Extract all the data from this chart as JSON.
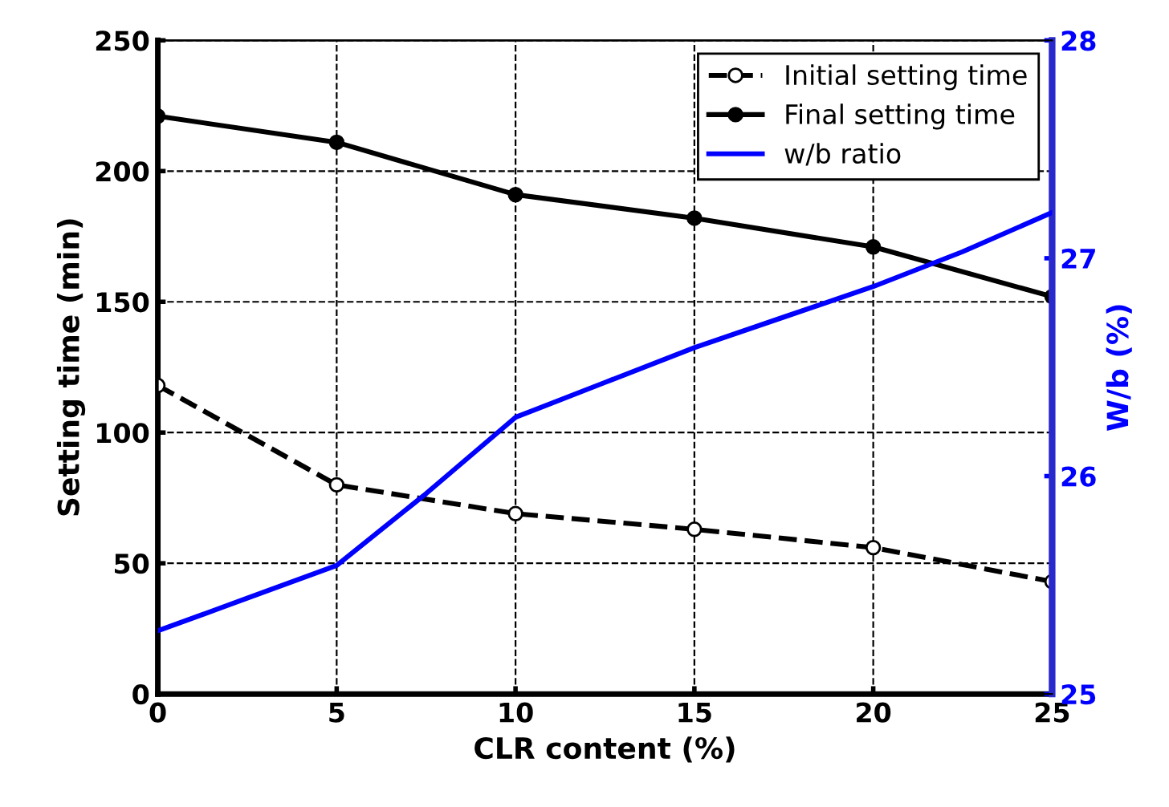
{
  "chart_data": {
    "type": "line",
    "xlabel": "CLR content (%)",
    "ylabel": "Setting time (min)",
    "y2label": "W/b (%)",
    "xlim": [
      0,
      25
    ],
    "xticks": [
      0,
      5,
      10,
      15,
      20,
      25
    ],
    "ylim": [
      0,
      250
    ],
    "yticks": [
      0,
      50,
      100,
      150,
      200,
      250
    ],
    "y2lim": [
      25,
      28
    ],
    "y2ticks": [
      25,
      26,
      27,
      28
    ],
    "grid": true,
    "legend": "top right",
    "series": [
      {
        "name": "Initial setting time",
        "color": "#000000",
        "x": [
          0,
          5,
          10,
          15,
          20,
          25
        ],
        "values": [
          118,
          80,
          69,
          63,
          56,
          43
        ],
        "marker": "circle",
        "line_style": "dashed"
      },
      {
        "name": "Final setting time",
        "color": "#000000",
        "x": [
          0,
          5,
          10,
          15,
          20,
          25
        ],
        "values": [
          221,
          211,
          191,
          182,
          171,
          152
        ],
        "marker": "circle",
        "line_style": "solid"
      },
      {
        "name": "w/b ratio",
        "color": "#0000ff",
        "axis": "y2",
        "x": [
          0,
          2.5,
          5,
          7.5,
          10,
          12.5,
          15,
          17.5,
          20,
          22.5,
          25
        ],
        "values": [
          25.29,
          25.44,
          25.59,
          25.92,
          26.27,
          26.43,
          26.59,
          26.73,
          26.87,
          27.03,
          27.21
        ],
        "marker": "none",
        "line_style": "solid"
      }
    ]
  }
}
